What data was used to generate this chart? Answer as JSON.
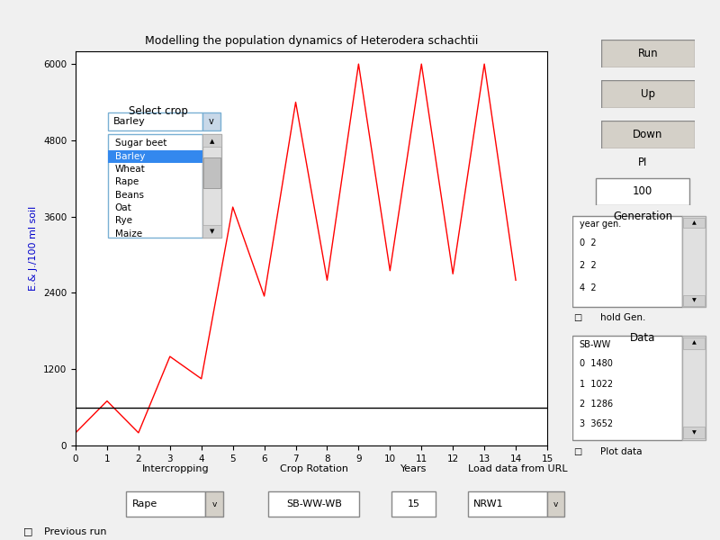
{
  "title": "Modelling the population dynamics of Heterodera schachtii",
  "ylabel": "E.& J./100 ml soil",
  "ylim": [
    0,
    6200
  ],
  "xlim": [
    0,
    15
  ],
  "yticks": [
    0.0,
    1200.0,
    2400.0,
    3600.0,
    4800.0,
    6000.0
  ],
  "xticks": [
    0,
    1,
    2,
    3,
    4,
    5,
    6,
    7,
    8,
    9,
    10,
    11,
    12,
    13,
    14,
    15
  ],
  "line_x": [
    0,
    1,
    2,
    3,
    4,
    5,
    6,
    7,
    8,
    9,
    10,
    11,
    12,
    13,
    14
  ],
  "line_y": [
    200,
    700,
    200,
    1400,
    1050,
    3750,
    2350,
    5400,
    2600,
    6000,
    2750,
    6000,
    2700,
    6000,
    2600
  ],
  "line_color": "#ff0000",
  "hline_y": 600,
  "hline_color": "#000000",
  "plot_bg": "#ffffff",
  "fig_bg": "#f0f0f0",
  "dropdown_selected": "Barley",
  "dropdown_items": [
    "Sugar beet",
    "Barley",
    "Wheat",
    "Rape",
    "Beans",
    "Oat",
    "Rye",
    "Maize"
  ],
  "select_crop_label": "Select crop",
  "intercropping_label": "Intercropping",
  "intercropping_val": "Rape",
  "crop_rotation_label": "Crop Rotation",
  "crop_rotation_val": "SB-WW-WB",
  "years_label": "Years",
  "years_val": "15",
  "load_data_label": "Load data from URL",
  "load_data_val": "NRW1",
  "pi_label": "PI",
  "pi_val": "100",
  "generation_label": "Generation",
  "gen_header": "year gen.",
  "gen_data": [
    "0  2",
    "2  2",
    "4  2"
  ],
  "data_label": "Data",
  "data_header": "SB-WW",
  "data_rows": [
    "0  1480",
    "1  1022",
    "2  1286",
    "3  3652"
  ],
  "btn_run": "Run",
  "btn_up": "Up",
  "btn_down": "Down",
  "hold_gen_label": "hold Gen.",
  "plot_data_label": "Plot data",
  "previous_run_label": "Previous run",
  "ylabel_color": "#0000cc",
  "label_color_bottom": "#cc6600"
}
